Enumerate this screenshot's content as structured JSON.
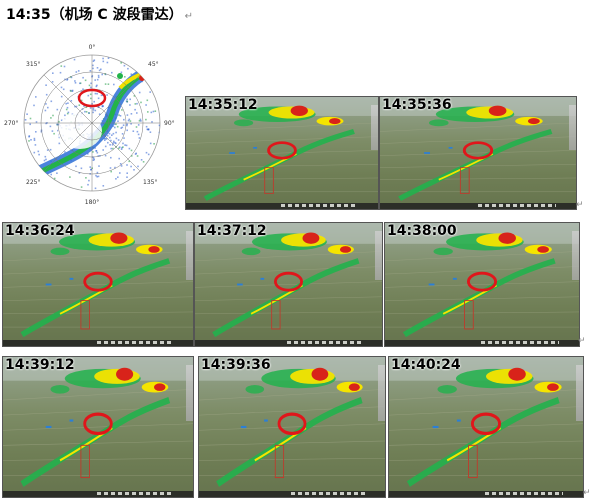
{
  "doc": {
    "title": "14:35（机场 C 波段雷达）",
    "para_mark": "↵"
  },
  "polar": {
    "labels": {
      "n": "0°",
      "ne": "45°",
      "e": "90°",
      "se": "135°",
      "s": "180°",
      "sw": "225°",
      "w": "270°",
      "nw": "315°"
    }
  },
  "panels": [
    {
      "time": "14:35:12"
    },
    {
      "time": "14:35:36"
    },
    {
      "time": "14:36:24"
    },
    {
      "time": "14:37:12"
    },
    {
      "time": "14:38:00"
    },
    {
      "time": "14:39:12"
    },
    {
      "time": "14:39:36"
    },
    {
      "time": "14:40:24"
    }
  ],
  "colors": {
    "echo_green": "#22b14c",
    "echo_yellow": "#f5e400",
    "echo_red": "#d8231a",
    "highlight_ring": "#e0161b"
  }
}
